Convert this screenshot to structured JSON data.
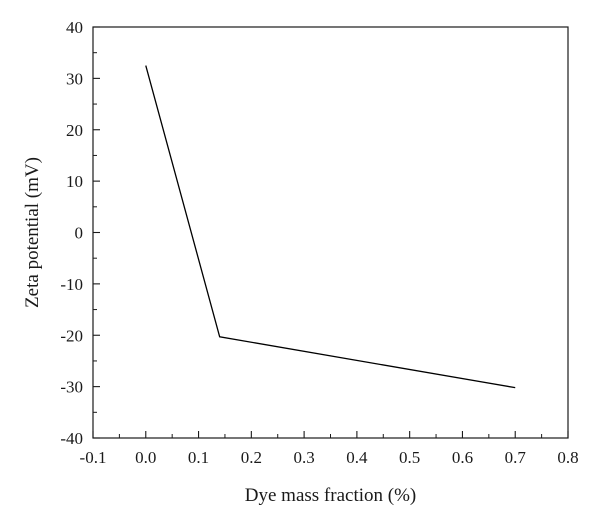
{
  "chart_data": {
    "type": "line",
    "title": "",
    "xlabel": "Dye mass fraction (%)",
    "ylabel": "Zeta potential (mV)",
    "xlim": [
      -0.1,
      0.8
    ],
    "ylim": [
      -40,
      40
    ],
    "x_ticks": [
      -0.1,
      0.0,
      0.1,
      0.2,
      0.3,
      0.4,
      0.5,
      0.6,
      0.7,
      0.8
    ],
    "x_tick_labels": [
      "-0.1",
      "0.0",
      "0.1",
      "0.2",
      "0.3",
      "0.4",
      "0.5",
      "0.6",
      "0.7",
      "0.8"
    ],
    "y_ticks": [
      40,
      30,
      20,
      10,
      0,
      -10,
      -20,
      -30,
      -40
    ],
    "y_tick_labels": [
      "40",
      "30",
      "20",
      "10",
      "0",
      "-10",
      "-20",
      "-30",
      "-40"
    ],
    "grid": false,
    "legend": "none",
    "series": [
      {
        "x": [
          0.0,
          0.14,
          0.7
        ],
        "y": [
          32.5,
          -20.3,
          -30.2
        ],
        "color": "#000000"
      }
    ]
  }
}
